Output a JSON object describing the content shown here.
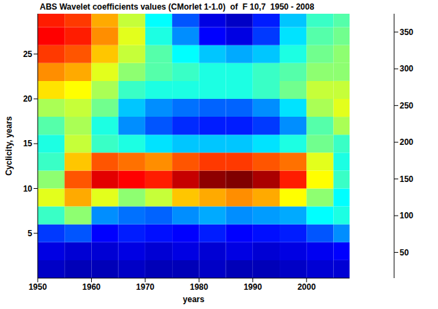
{
  "chart_data": {
    "type": "heatmap",
    "title": "ABS Wavelet coefficients values (CMorlet 1-1.0)  of  F 10,7  1950 - 2008",
    "x_label": "years",
    "y_label": "Cyclicity, years",
    "xlim": [
      1950,
      2008
    ],
    "xticks": [
      1950,
      1960,
      1970,
      1980,
      1990,
      2000
    ],
    "ylim": [
      0,
      29.5
    ],
    "yticks": [
      5,
      10,
      15,
      20,
      25
    ],
    "x_edges": [
      1950,
      1955,
      1960,
      1965,
      1970,
      1975,
      1980,
      1985,
      1990,
      1995,
      2000,
      2005,
      2008
    ],
    "y_edges": [
      0,
      2,
      4,
      6,
      8,
      10,
      12,
      14,
      16,
      18,
      20,
      22,
      24,
      26,
      28,
      29.5
    ],
    "cells": [
      [
        40,
        35,
        35,
        40,
        35,
        35,
        40,
        35,
        35,
        40,
        45,
        45
      ],
      [
        50,
        45,
        45,
        50,
        45,
        50,
        45,
        50,
        45,
        50,
        55,
        60
      ],
      [
        80,
        90,
        60,
        70,
        65,
        60,
        70,
        60,
        65,
        70,
        90,
        110
      ],
      [
        170,
        200,
        110,
        100,
        95,
        110,
        120,
        110,
        115,
        120,
        150,
        160
      ],
      [
        230,
        270,
        230,
        200,
        220,
        260,
        270,
        280,
        270,
        240,
        200,
        150
      ],
      [
        200,
        300,
        340,
        330,
        320,
        350,
        370,
        375,
        360,
        320,
        240,
        170
      ],
      [
        170,
        260,
        300,
        290,
        280,
        300,
        310,
        310,
        300,
        290,
        230,
        160
      ],
      [
        160,
        220,
        170,
        160,
        140,
        130,
        130,
        130,
        140,
        160,
        190,
        170
      ],
      [
        180,
        210,
        160,
        110,
        90,
        75,
        70,
        70,
        80,
        110,
        180,
        210
      ],
      [
        210,
        220,
        190,
        130,
        110,
        100,
        95,
        95,
        110,
        140,
        210,
        230
      ],
      [
        250,
        240,
        210,
        170,
        160,
        160,
        160,
        160,
        170,
        190,
        220,
        220
      ],
      [
        280,
        270,
        230,
        200,
        180,
        170,
        160,
        160,
        170,
        180,
        200,
        200
      ],
      [
        310,
        300,
        260,
        220,
        180,
        150,
        130,
        120,
        130,
        160,
        190,
        200
      ],
      [
        330,
        320,
        280,
        230,
        160,
        110,
        60,
        50,
        80,
        140,
        180,
        190
      ],
      [
        320,
        310,
        270,
        220,
        150,
        90,
        50,
        40,
        70,
        130,
        170,
        180
      ]
    ],
    "colorbar_range": [
      15,
      375
    ],
    "colorbar_ticks": [
      50,
      100,
      150,
      200,
      250,
      300,
      350
    ]
  }
}
